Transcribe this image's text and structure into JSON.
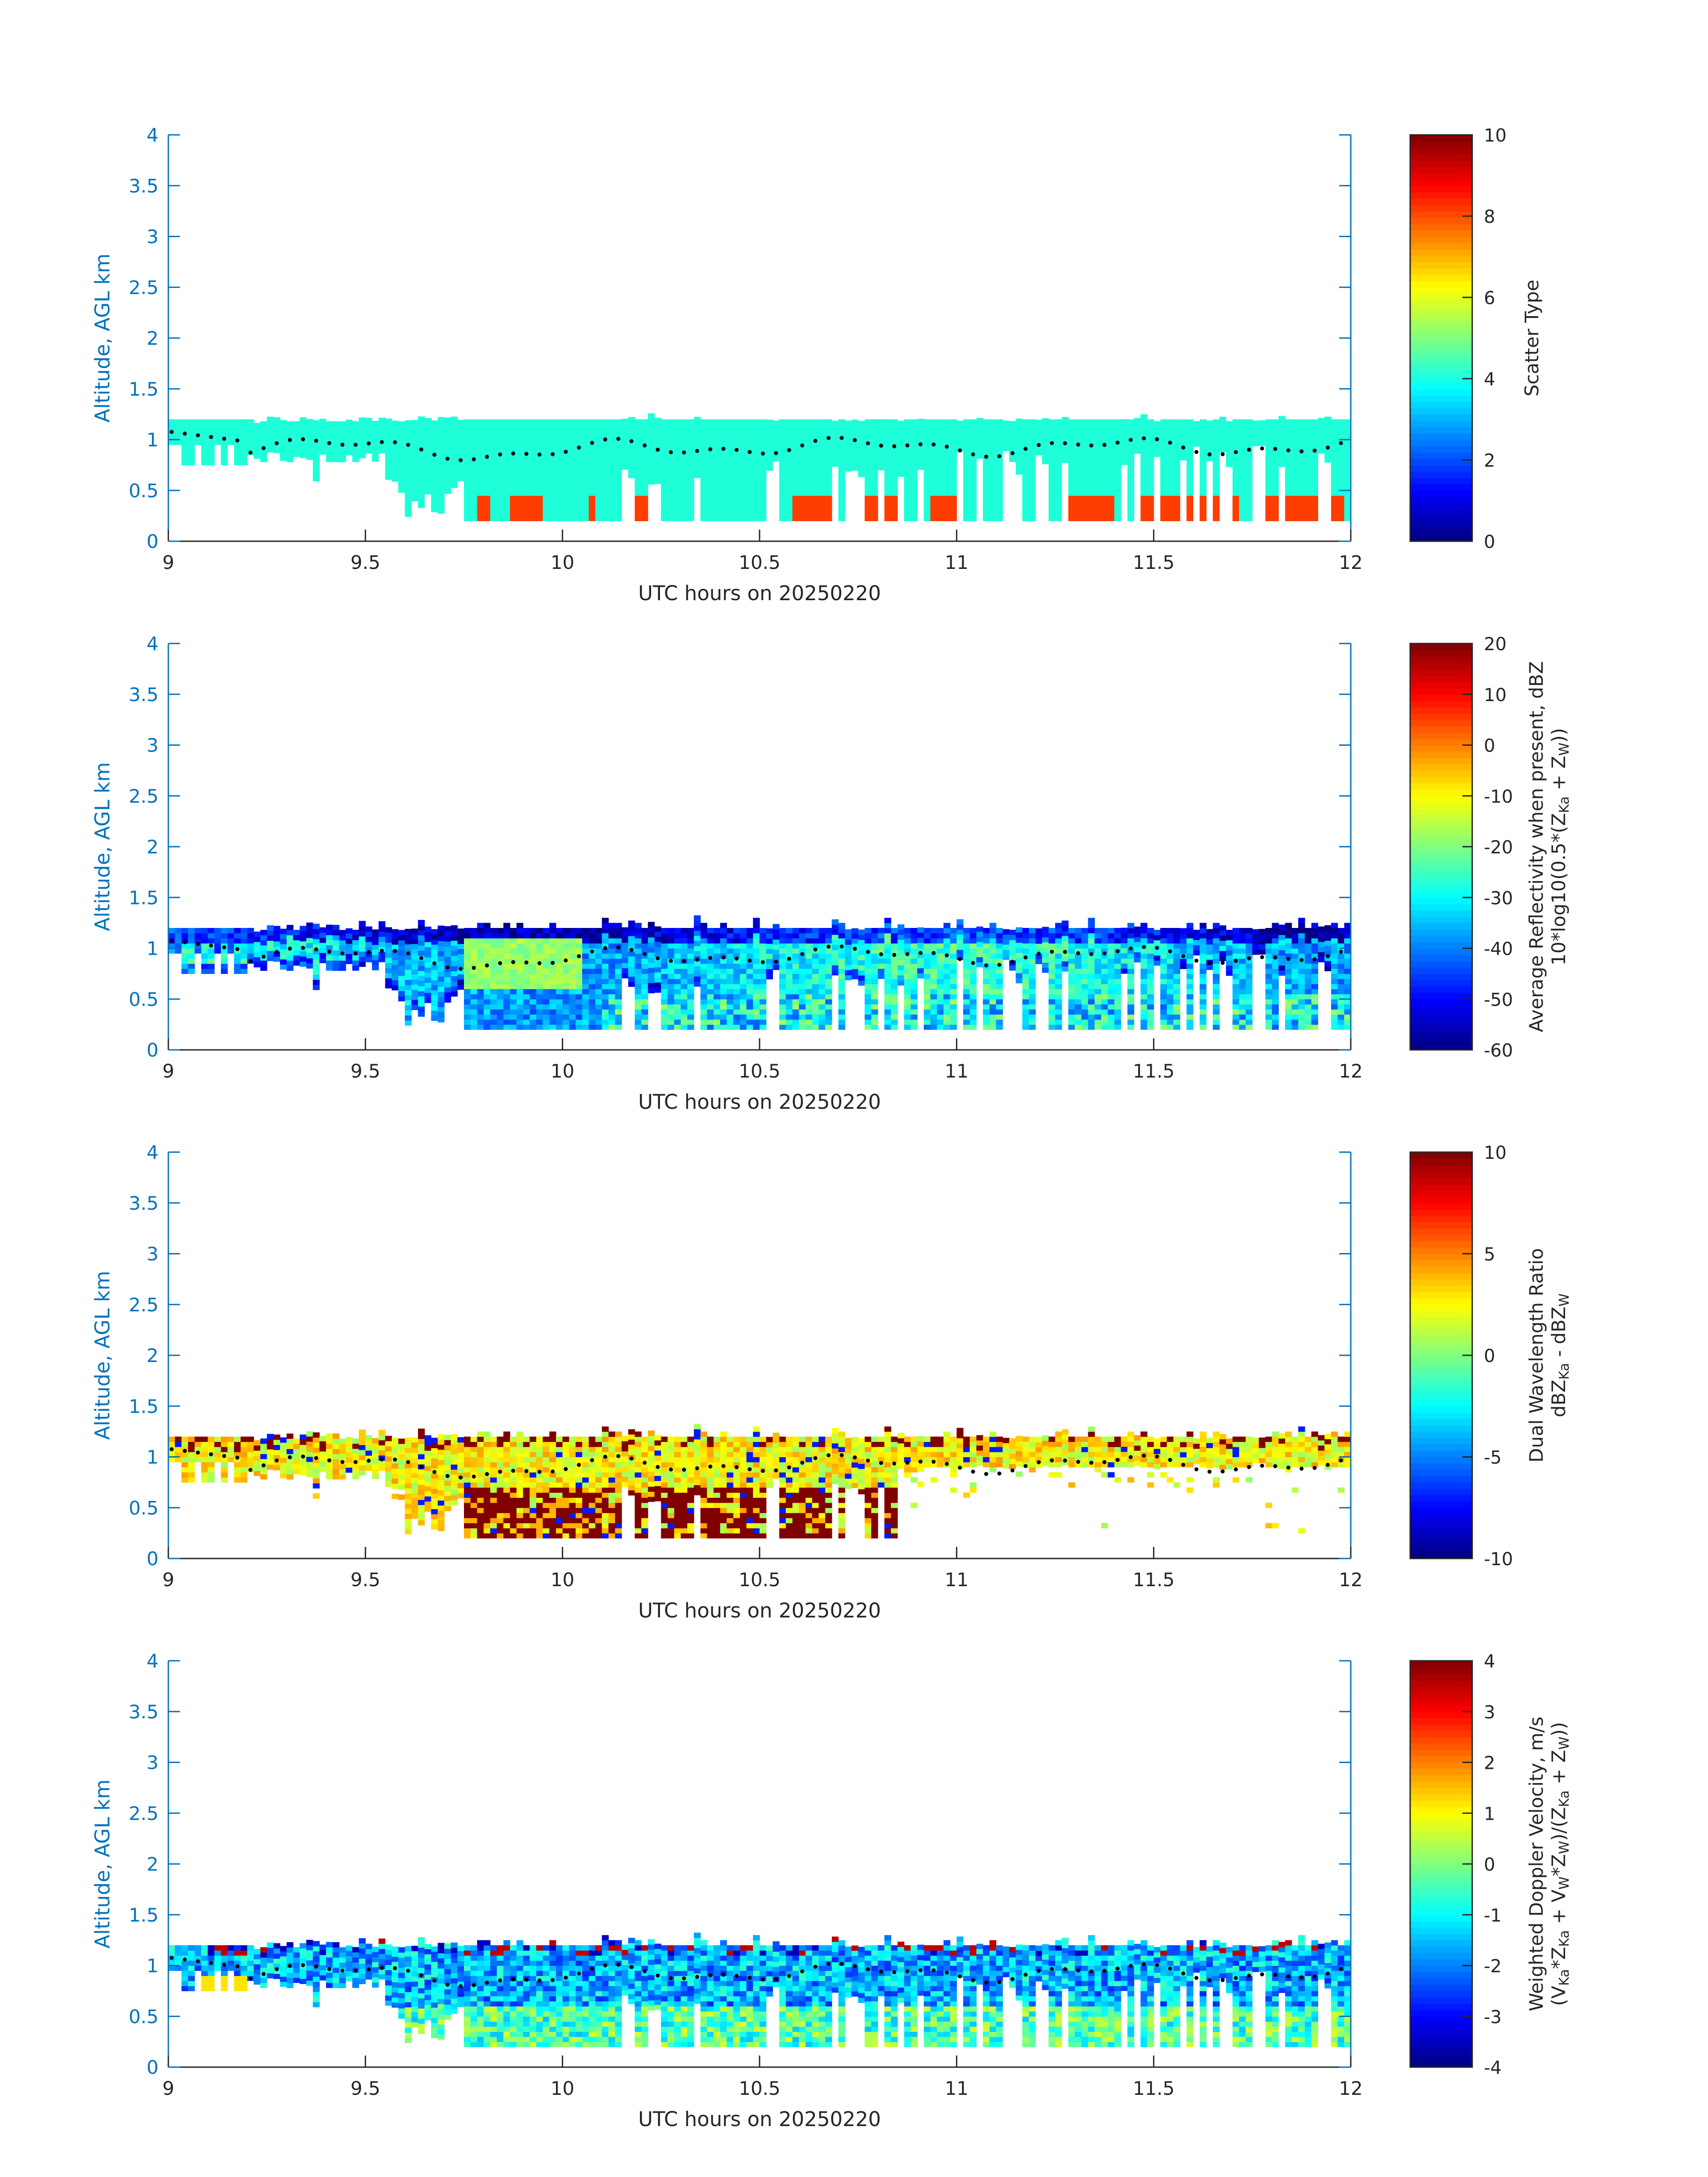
{
  "colors": {
    "axis": "#0072bd",
    "text": "#262626",
    "cloud": "#1effd9",
    "rain": "#ff3d00",
    "dots": "#000000"
  },
  "chart_data": [
    {
      "type": "heatmap",
      "title": "",
      "xlabel": "UTC hours on 20250220",
      "ylabel": "Altitude, AGL km",
      "xlim": [
        9,
        12
      ],
      "ylim": [
        0,
        4
      ],
      "xticks": [
        "9",
        "9.5",
        "10",
        "10.5",
        "11",
        "11.5",
        "12"
      ],
      "yticks": [
        "0",
        "0.5",
        "1",
        "1.5",
        "2",
        "2.5",
        "3",
        "3.5",
        "4"
      ],
      "colorbar": {
        "label_lines": [
          "Scatter Type"
        ],
        "range": [
          0,
          10
        ],
        "ticks": [
          "0",
          "2",
          "4",
          "6",
          "8",
          "10"
        ],
        "colormap": "jet"
      },
      "field": "scatter_type",
      "cloud_value": 3.5,
      "rain_value": 8.5,
      "cloud_base_km": 0.2,
      "cloud_top_km": 1.18,
      "rain_top_km": 0.45,
      "rain_segments_hours": [
        [
          9.78,
          9.82
        ],
        [
          9.86,
          9.95
        ],
        [
          10.07,
          10.09
        ],
        [
          10.19,
          10.21
        ],
        [
          10.58,
          10.69
        ],
        [
          10.77,
          10.86
        ],
        [
          10.93,
          11.02
        ],
        [
          11.29,
          11.4
        ],
        [
          11.45,
          11.6
        ],
        [
          11.62,
          11.72
        ],
        [
          11.76,
          11.98
        ]
      ],
      "cloud_dots": "layer_top"
    },
    {
      "type": "heatmap",
      "title": "",
      "xlabel": "UTC hours on 20250220",
      "ylabel": "Altitude, AGL km",
      "xlim": [
        9,
        12
      ],
      "ylim": [
        0,
        4
      ],
      "xticks": [
        "9",
        "9.5",
        "10",
        "10.5",
        "11",
        "11.5",
        "12"
      ],
      "yticks": [
        "0",
        "0.5",
        "1",
        "1.5",
        "2",
        "2.5",
        "3",
        "3.5",
        "4"
      ],
      "colorbar": {
        "label_lines": [
          "Average Reflectivity when present, dBZ",
          "10*log10(0.5*(Z",
          "Ka",
          " + Z",
          "W",
          "))"
        ],
        "range": [
          -60,
          20
        ],
        "ticks": [
          "-60",
          "-50",
          "-40",
          "-30",
          "-20",
          "-10",
          "0",
          "10",
          "20"
        ],
        "colormap": "jet"
      },
      "field": "reflectivity_dbz"
    },
    {
      "type": "heatmap",
      "title": "",
      "xlabel": "UTC hours on 20250220",
      "ylabel": "Altitude, AGL km",
      "xlim": [
        9,
        12
      ],
      "ylim": [
        0,
        4
      ],
      "xticks": [
        "9",
        "9.5",
        "10",
        "10.5",
        "11",
        "11.5",
        "12"
      ],
      "yticks": [
        "0",
        "0.5",
        "1",
        "1.5",
        "2",
        "2.5",
        "3",
        "3.5",
        "4"
      ],
      "colorbar": {
        "label_lines": [
          "Dual Wavelength Ratio",
          "dBZ",
          "Ka",
          " - dBZ",
          "W"
        ],
        "range": [
          -10,
          10
        ],
        "ticks": [
          "-10",
          "-5",
          "0",
          "5",
          "10"
        ],
        "colormap": "jet"
      },
      "field": "dual_wavelength_ratio_db"
    },
    {
      "type": "heatmap",
      "title": "",
      "xlabel": "UTC hours on 20250220",
      "ylabel": "Altitude, AGL km",
      "xlim": [
        9,
        12
      ],
      "ylim": [
        0,
        4
      ],
      "xticks": [
        "9",
        "9.5",
        "10",
        "10.5",
        "11",
        "11.5",
        "12"
      ],
      "yticks": [
        "0",
        "0.5",
        "1",
        "1.5",
        "2",
        "2.5",
        "3",
        "3.5",
        "4"
      ],
      "colorbar": {
        "label_lines": [
          "Weighted Doppler Velocity, m/s",
          "(V",
          "Ka",
          "*Z",
          "Ka",
          " + V",
          "W",
          "*Z",
          "W",
          ")/(Z",
          "Ka",
          " + Z",
          "W",
          "))"
        ],
        "range": [
          -4,
          4
        ],
        "ticks": [
          "-4",
          "-3",
          "-2",
          "-1",
          "0",
          "1",
          "2",
          "3",
          "4"
        ],
        "colormap": "jet"
      },
      "field": "doppler_velocity_ms"
    }
  ]
}
